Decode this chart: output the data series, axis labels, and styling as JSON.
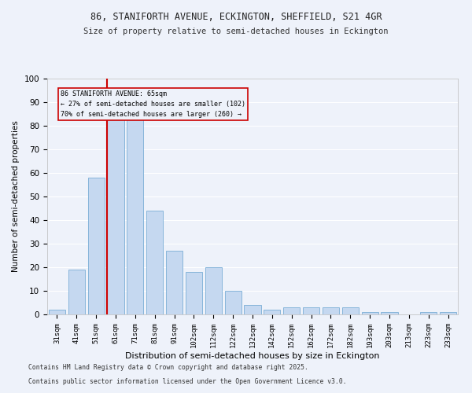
{
  "title1": "86, STANIFORTH AVENUE, ECKINGTON, SHEFFIELD, S21 4GR",
  "title2": "Size of property relative to semi-detached houses in Eckington",
  "xlabel": "Distribution of semi-detached houses by size in Eckington",
  "ylabel": "Number of semi-detached properties",
  "categories": [
    "31sqm",
    "41sqm",
    "51sqm",
    "61sqm",
    "71sqm",
    "81sqm",
    "91sqm",
    "102sqm",
    "112sqm",
    "122sqm",
    "132sqm",
    "142sqm",
    "152sqm",
    "162sqm",
    "172sqm",
    "182sqm",
    "193sqm",
    "203sqm",
    "213sqm",
    "223sqm",
    "233sqm"
  ],
  "values": [
    2,
    19,
    58,
    93,
    93,
    44,
    27,
    18,
    20,
    10,
    4,
    2,
    3,
    3,
    3,
    3,
    1,
    1,
    0,
    1,
    1
  ],
  "highlight_index": 3,
  "highlight_color": "#cc0000",
  "bar_color": "#c5d8f0",
  "bar_edge_color": "#7aaed6",
  "background_color": "#eef2fa",
  "grid_color": "#ffffff",
  "annotation_title": "86 STANIFORTH AVENUE: 65sqm",
  "annotation_line1": "← 27% of semi-detached houses are smaller (102)",
  "annotation_line2": "70% of semi-detached houses are larger (260) →",
  "footer1": "Contains HM Land Registry data © Crown copyright and database right 2025.",
  "footer2": "Contains public sector information licensed under the Open Government Licence v3.0.",
  "ylim": [
    0,
    100
  ],
  "yticks": [
    0,
    10,
    20,
    30,
    40,
    50,
    60,
    70,
    80,
    90,
    100
  ]
}
